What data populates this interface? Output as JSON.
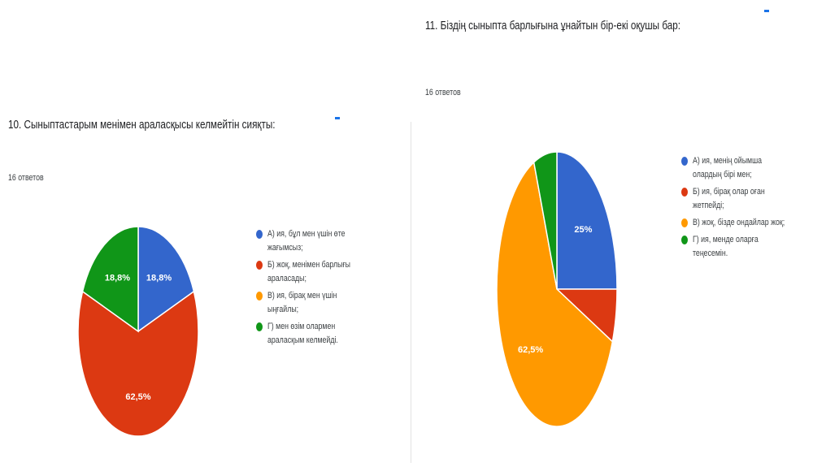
{
  "chart_data": [
    {
      "type": "pie",
      "title": "10. Сыныптастарым менімен араласқысы келмейтін сияқты:",
      "responses": "16 ответов",
      "categories": [
        "А) ия, бұл мен үшін өте жағымсыз;",
        "Б) жоқ, менімен барлығы араласады;",
        "В) ия, бірақ мен үшін ыңғайлы;",
        "Г) мен өзім олармен араласқым келмейді."
      ],
      "values": [
        18.8,
        62.5,
        0,
        18.8
      ],
      "value_labels": [
        "18,8%",
        "62,5%",
        "",
        "18,8%"
      ],
      "colors": [
        "#3366cc",
        "#dc3912",
        "#ff9900",
        "#109618"
      ],
      "legend_position": "right"
    },
    {
      "type": "pie",
      "title": "11. Біздің сыныпта барлығына ұнайтын бір-екі оқушы бар:",
      "responses": "16 ответов",
      "categories": [
        "А) ия, менің ойымша олардың бірі мен;",
        "Б) ия, бірақ олар оған жетпейді;",
        "В) жоқ, бізде ондайлар жоқ;",
        "Г) ия, менде оларға теңесемін."
      ],
      "values": [
        25,
        6.25,
        62.5,
        6.25
      ],
      "value_labels": [
        "25%",
        "",
        "62,5%",
        ""
      ],
      "colors": [
        "#3366cc",
        "#dc3912",
        "#ff9900",
        "#109618"
      ],
      "legend_position": "right"
    }
  ],
  "ui": {
    "accent": "#1a73e8"
  }
}
